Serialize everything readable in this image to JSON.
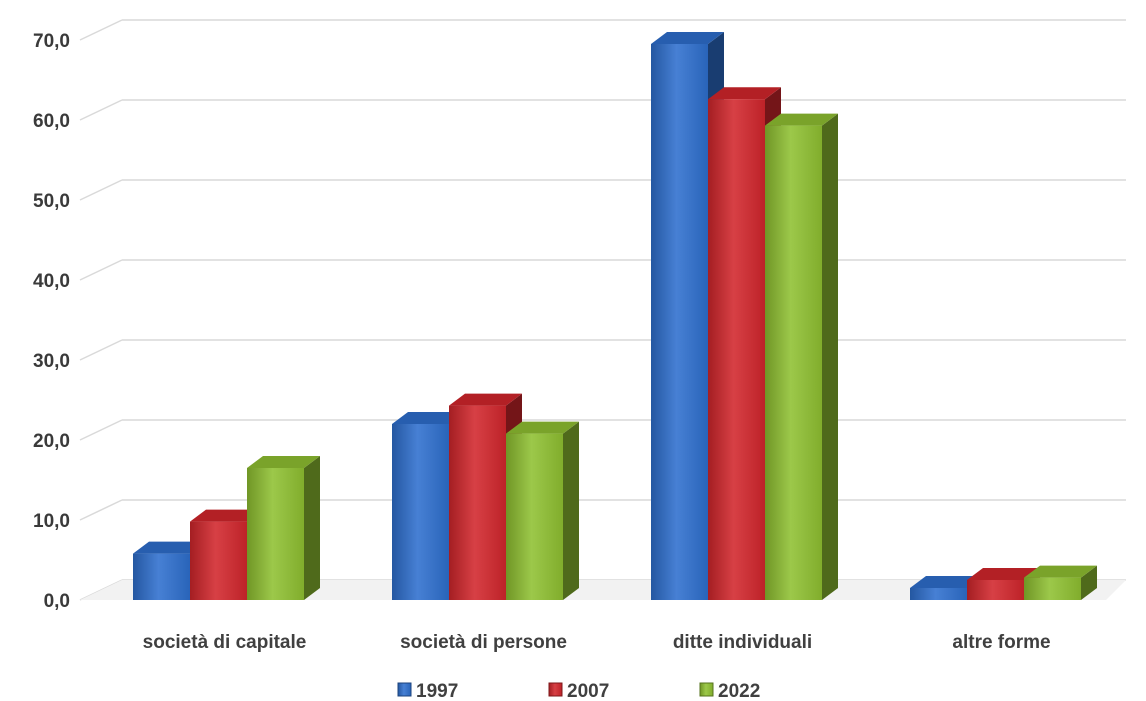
{
  "chart_data": {
    "type": "bar",
    "categories": [
      "società di capitale",
      "società di persone",
      "ditte individuali",
      "altre forme"
    ],
    "series": [
      {
        "name": "1997",
        "values": [
          5.8,
          22.0,
          69.5,
          1.5
        ],
        "color": "#2e6fce"
      },
      {
        "name": "2007",
        "values": [
          9.8,
          24.3,
          62.6,
          2.5
        ],
        "color": "#d2262c"
      },
      {
        "name": "2022",
        "values": [
          16.5,
          20.8,
          59.3,
          2.8
        ],
        "color": "#8fc031"
      }
    ],
    "y_ticks": [
      "0,0",
      "10,0",
      "20,0",
      "30,0",
      "40,0",
      "50,0",
      "60,0",
      "70,0"
    ],
    "ylim": [
      0,
      70
    ],
    "grid": true,
    "legend": "bottom",
    "style": "3d-clustered-column"
  }
}
